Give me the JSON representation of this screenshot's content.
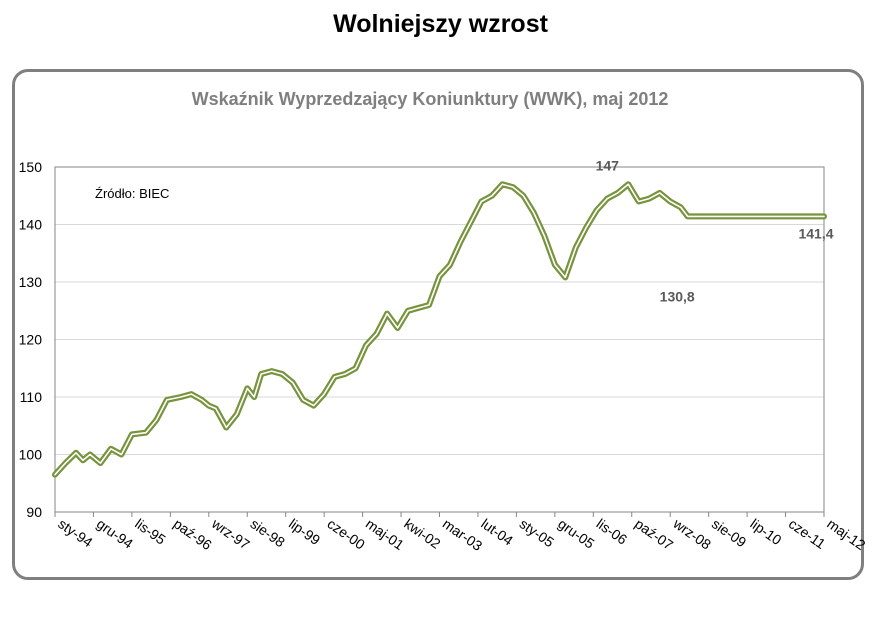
{
  "page": {
    "title": "Wolniejszy wzrost"
  },
  "chart_data": {
    "type": "line",
    "title": "Wskaźnik Wyprzedzający Koniunktury (WWK), maj 2012",
    "source_note": "Źródło: BIEC",
    "xlabel": "",
    "ylabel": "",
    "ylim": [
      90,
      150
    ],
    "yticks": [
      "90",
      "100",
      "110",
      "120",
      "130",
      "140",
      "150"
    ],
    "xticks": [
      "sty-94",
      "gru-94",
      "lis-95",
      "paź-96",
      "wrz-97",
      "sie-98",
      "lip-99",
      "cze-00",
      "maj-01",
      "kwi-02",
      "mar-03",
      "lut-04",
      "sty-05",
      "gru-05",
      "lis-06",
      "paź-07",
      "wrz-08",
      "sie-09",
      "lip-10",
      "cze-11",
      "maj-12"
    ],
    "x_start": "1994-01",
    "x_end": "2012-05",
    "grid": true,
    "line_color": "#77933c",
    "series": [
      {
        "x": [
          "1994-01",
          "1994-04",
          "1994-07",
          "1994-09",
          "1994-11",
          "1995-02",
          "1995-05",
          "1995-08",
          "1995-11",
          "1996-03",
          "1996-06",
          "1996-09",
          "1997-01",
          "1997-04",
          "1997-07",
          "1997-09",
          "1997-11",
          "1998-02",
          "1998-05",
          "1998-08",
          "1998-10",
          "1998-12",
          "1999-03",
          "1999-06",
          "1999-09",
          "1999-12",
          "2000-03",
          "2000-06",
          "2000-09",
          "2000-12",
          "2001-03",
          "2001-06",
          "2001-09",
          "2001-12",
          "2002-03",
          "2002-06",
          "2002-09",
          "2002-12",
          "2003-03",
          "2003-06",
          "2003-09",
          "2003-12",
          "2004-03",
          "2004-06",
          "2004-09",
          "2004-12",
          "2005-03",
          "2005-06",
          "2005-09",
          "2005-12",
          "2006-03",
          "2006-06",
          "2006-09",
          "2006-12",
          "2007-03",
          "2007-06",
          "2007-09",
          "2007-12",
          "2008-03",
          "2008-06",
          "2008-09",
          "2008-12",
          "2009-02",
          "2009-05",
          "2009-08",
          "2009-11",
          "2010-02",
          "2010-05",
          "2010-08",
          "2010-11",
          "2011-02",
          "2011-05",
          "2011-08",
          "2011-11",
          "2012-02",
          "2012-05"
        ],
        "y": [
          96.5,
          98.5,
          100.3,
          99.0,
          100.0,
          98.5,
          101.0,
          100.0,
          103.5,
          103.8,
          106.0,
          109.5,
          110.0,
          110.5,
          109.5,
          108.5,
          108.0,
          104.7,
          107.0,
          111.5,
          110.0,
          114.0,
          114.5,
          114.0,
          112.5,
          109.5,
          108.5,
          110.5,
          113.5,
          114.0,
          115.0,
          119.0,
          121.0,
          124.5,
          122.0,
          125.0,
          125.5,
          126.0,
          131.0,
          133.0,
          137.0,
          140.5,
          144.0,
          145.0,
          147.0,
          146.5,
          145.0,
          142.0,
          138.0,
          133.0,
          130.8,
          136.0,
          139.5,
          142.5,
          144.5,
          145.5,
          147.0,
          144.0,
          144.5,
          145.5,
          144.0,
          143.0,
          141.4,
          141.4,
          141.4,
          141.4,
          141.4,
          141.4,
          141.4,
          141.4,
          141.4,
          141.4,
          141.4,
          141.4,
          141.4,
          141.4
        ]
      }
    ],
    "annotations": [
      {
        "text": "147",
        "x": "2007-03",
        "y": 147
      },
      {
        "text": "130,8",
        "x": "2008-11",
        "y": 130.8
      },
      {
        "text": "141,4",
        "x": "2012-05",
        "y": 141.4
      }
    ]
  }
}
